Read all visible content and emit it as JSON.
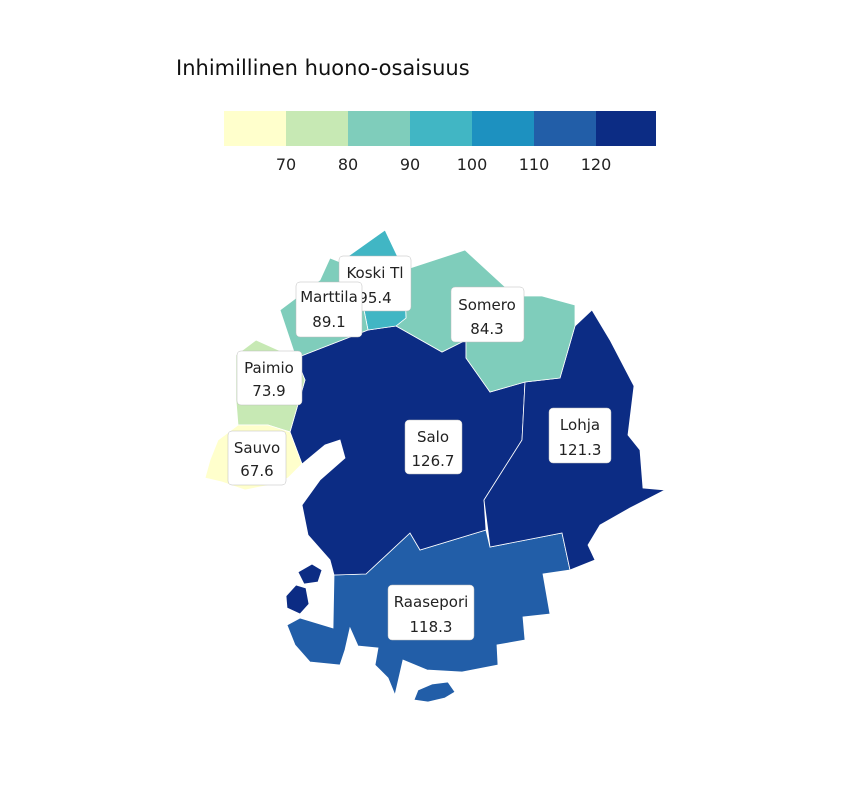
{
  "legend": {
    "title": "Inhimillinen huono-osaisuus",
    "ticks": [
      "70",
      "80",
      "90",
      "100",
      "110",
      "120"
    ],
    "bins": [
      {
        "color": "#ffffcc"
      },
      {
        "color": "#c7e9b4"
      },
      {
        "color": "#7fcdbb"
      },
      {
        "color": "#41b6c4"
      },
      {
        "color": "#1d91c0"
      },
      {
        "color": "#225ea8"
      },
      {
        "color": "#0c2c84"
      }
    ]
  },
  "regions": [
    {
      "name": "Salo",
      "value": "126.7",
      "color": "#0c2c84"
    },
    {
      "name": "Lohja",
      "value": "121.3",
      "color": "#0c2c84"
    },
    {
      "name": "Raasepori",
      "value": "118.3",
      "color": "#225ea8"
    },
    {
      "name": "Somero",
      "value": "84.3",
      "color": "#7fcdbb"
    },
    {
      "name": "Koski Tl",
      "value": "95.4",
      "value_visible": "95.4",
      "color": "#41b6c4"
    },
    {
      "name": "Marttila",
      "value": "89.1",
      "color": "#7fcdbb"
    },
    {
      "name": "Paimio",
      "value": "73.9",
      "color": "#c7e9b4"
    },
    {
      "name": "Sauvo",
      "value": "67.6",
      "color": "#ffffcc"
    }
  ]
}
